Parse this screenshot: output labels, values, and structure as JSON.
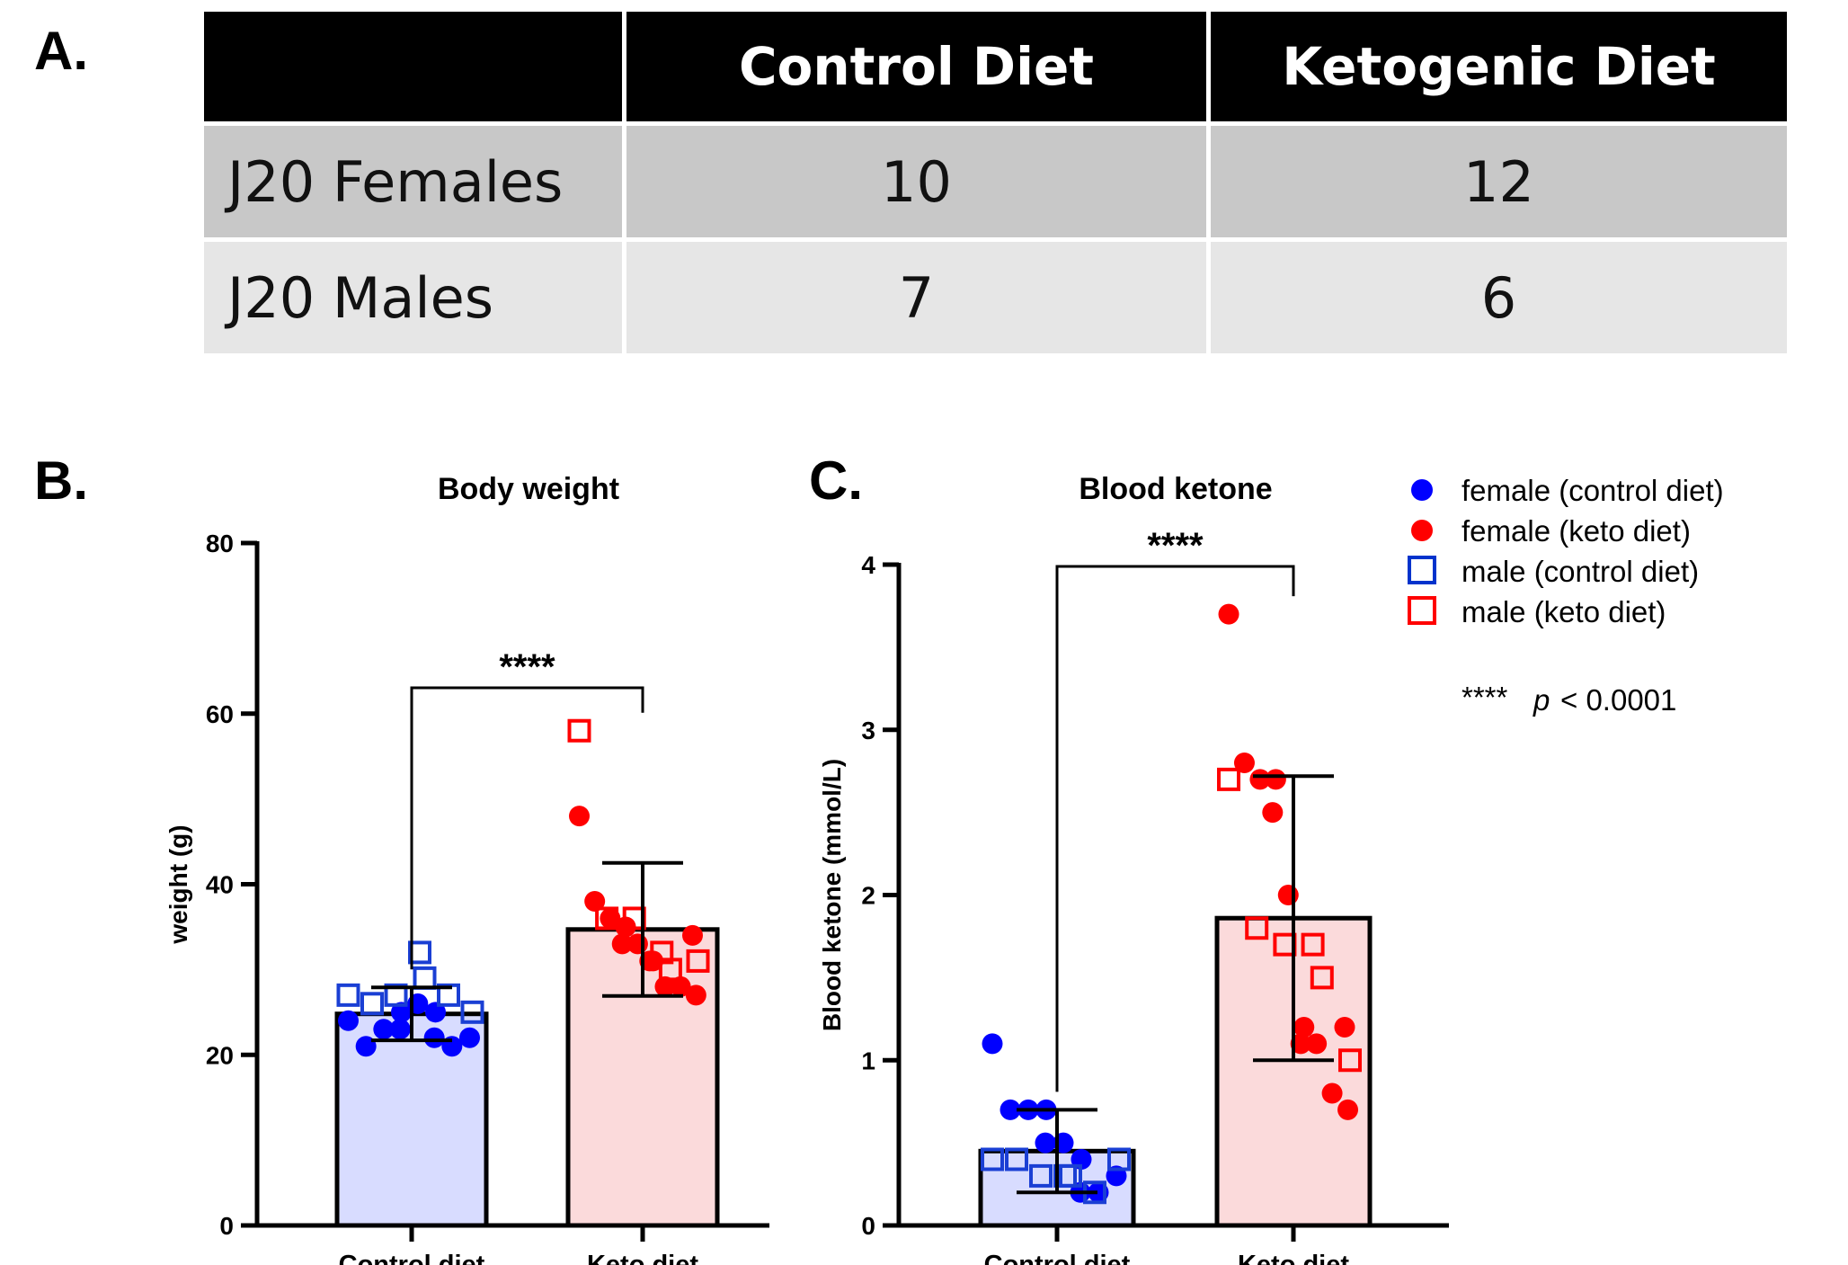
{
  "panels": {
    "a": "A.",
    "b": "B.",
    "c": "C."
  },
  "table": {
    "header": [
      "",
      "Control Diet",
      "Ketogenic Diet"
    ],
    "rows": [
      [
        "J20 Females",
        "10",
        "12"
      ],
      [
        "J20 Males",
        "7",
        "6"
      ]
    ]
  },
  "legend": {
    "items": [
      {
        "label": "female (control diet)",
        "marker": "circle",
        "color": "#0000ff"
      },
      {
        "label": "female (keto diet)",
        "marker": "circle",
        "color": "#ff0000"
      },
      {
        "label": "male (control diet)",
        "marker": "square",
        "color": "#0033cc"
      },
      {
        "label": "male (keto diet)",
        "marker": "square",
        "color": "#ff0000"
      }
    ],
    "pnote_stars": "****",
    "pnote_p": "p",
    "pnote_rest": "< 0.0001"
  },
  "colors": {
    "control_fill": "#d8dcff",
    "keto_fill": "#fbdadb",
    "female_control": "#0000ff",
    "female_keto": "#ff0000",
    "male_control": "#1a3fd4",
    "male_keto": "#ff0000"
  },
  "chart_data": [
    {
      "type": "bar",
      "title": "Body weight",
      "xlabel": "",
      "ylabel": "weight (g)",
      "ylim": [
        0,
        80
      ],
      "yticks": [
        0,
        20,
        40,
        60,
        80
      ],
      "categories": [
        "Control diet",
        "Keto diet"
      ],
      "means": [
        24.8,
        34.7
      ],
      "sd": [
        3.1,
        7.8
      ],
      "significance": "****",
      "points": {
        "female_control": [
          24,
          21,
          23,
          25,
          23,
          26,
          25,
          22,
          21,
          22
        ],
        "male_control": [
          27,
          26,
          27,
          32,
          29,
          27,
          25
        ],
        "female_keto": [
          48,
          38,
          36,
          35,
          33,
          33,
          31,
          31,
          28,
          28,
          27,
          34
        ],
        "male_keto": [
          58,
          36,
          36,
          32,
          30,
          31
        ]
      }
    },
    {
      "type": "bar",
      "title": "Blood ketone",
      "xlabel": "",
      "ylabel": "Blood ketone (mmol/L)",
      "ylim": [
        0,
        4
      ],
      "yticks": [
        0,
        1,
        2,
        3,
        4
      ],
      "categories": [
        "Control diet",
        "Keto diet"
      ],
      "means": [
        0.45,
        1.86
      ],
      "sd": [
        0.25,
        0.86
      ],
      "significance": "****",
      "points": {
        "female_control": [
          1.1,
          0.7,
          0.7,
          0.7,
          0.5,
          0.5,
          0.4,
          0.2,
          0.2,
          0.3
        ],
        "male_control": [
          0.4,
          0.4,
          0.3,
          0.3,
          0.3,
          0.2,
          0.4
        ],
        "female_keto": [
          3.7,
          2.8,
          2.7,
          2.7,
          2.5,
          2.0,
          1.2,
          1.1,
          1.1,
          0.8,
          0.7,
          1.2
        ],
        "male_keto": [
          2.7,
          1.8,
          1.7,
          1.7,
          1.5,
          1.0
        ]
      }
    }
  ]
}
